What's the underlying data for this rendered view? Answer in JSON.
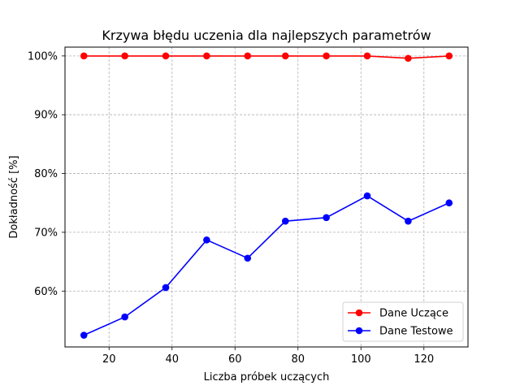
{
  "chart_data": {
    "type": "line",
    "title": "Krzywa błędu uczenia dla najlepszych parametrów",
    "xlabel": "Liczba próbek uczących",
    "ylabel": "Dokładność [%]",
    "x": [
      12,
      25,
      38,
      51,
      64,
      76,
      89,
      102,
      115,
      128
    ],
    "xlim": [
      6,
      134
    ],
    "ylim": [
      50.5,
      101.5
    ],
    "xticks": [
      20,
      40,
      60,
      80,
      100,
      120
    ],
    "yticks": [
      60,
      70,
      80,
      90,
      100
    ],
    "ytick_labels": [
      "60%",
      "70%",
      "80%",
      "90%",
      "100%"
    ],
    "grid": true,
    "grid_style": "dashed",
    "legend_position": "lower right",
    "series": [
      {
        "name": "Dane Uczące",
        "color": "#ff0000",
        "marker": "circle",
        "values": [
          100,
          100,
          100,
          100,
          100,
          100,
          100,
          100,
          99.6,
          100
        ]
      },
      {
        "name": "Dane Testowe",
        "color": "#0000ff",
        "marker": "circle",
        "values": [
          52.5,
          55.6,
          60.6,
          68.7,
          65.6,
          71.9,
          72.5,
          76.2,
          71.9,
          75.0
        ]
      }
    ]
  }
}
